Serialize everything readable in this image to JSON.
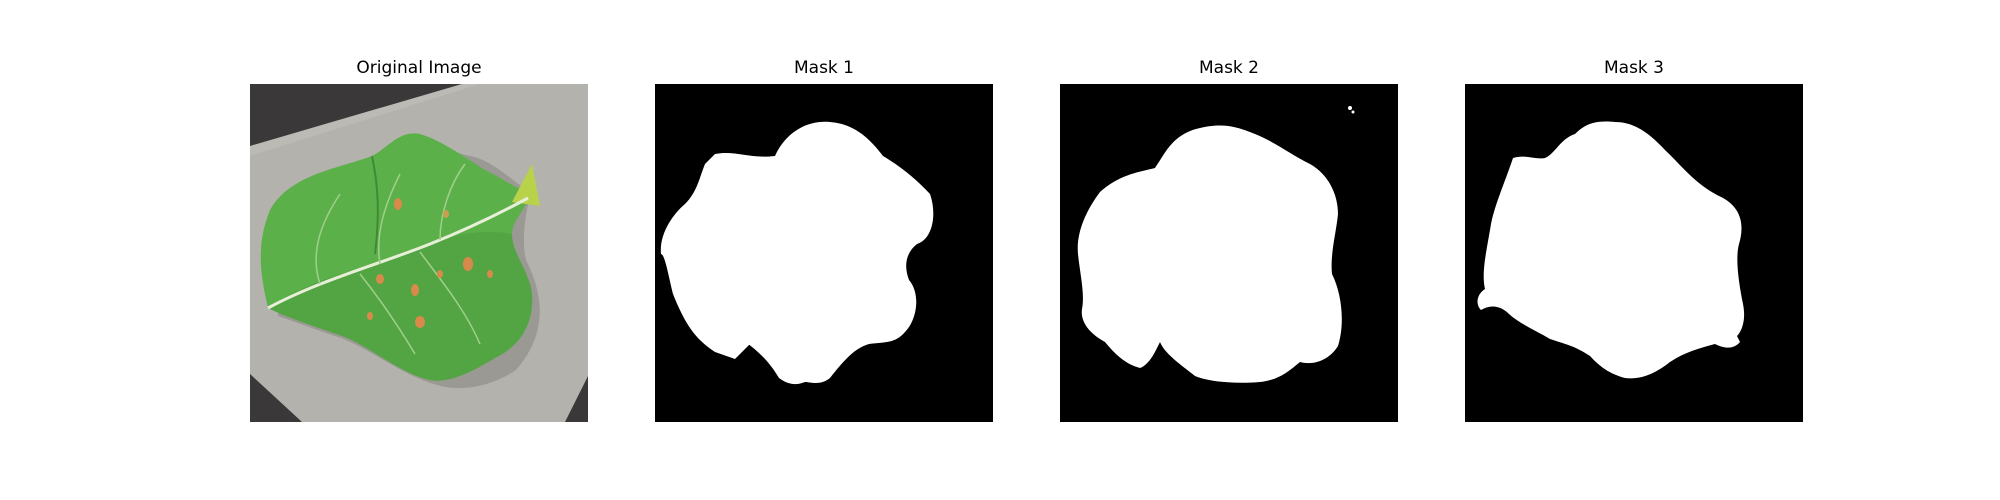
{
  "figure": {
    "panels": [
      {
        "title": "Original Image",
        "kind": "photo"
      },
      {
        "title": "Mask 1",
        "kind": "mask"
      },
      {
        "title": "Mask 2",
        "kind": "mask"
      },
      {
        "title": "Mask 3",
        "kind": "mask"
      }
    ]
  },
  "colors": {
    "background": "#ffffff",
    "mask_background": "#000000",
    "mask_foreground": "#ffffff",
    "leaf_green": "#5cb04a",
    "leaf_dark": "#3f8a35",
    "paper_gray": "#b4b2ad",
    "backdrop_dark": "#3a3838",
    "lesion_orange": "#d98a4a"
  }
}
